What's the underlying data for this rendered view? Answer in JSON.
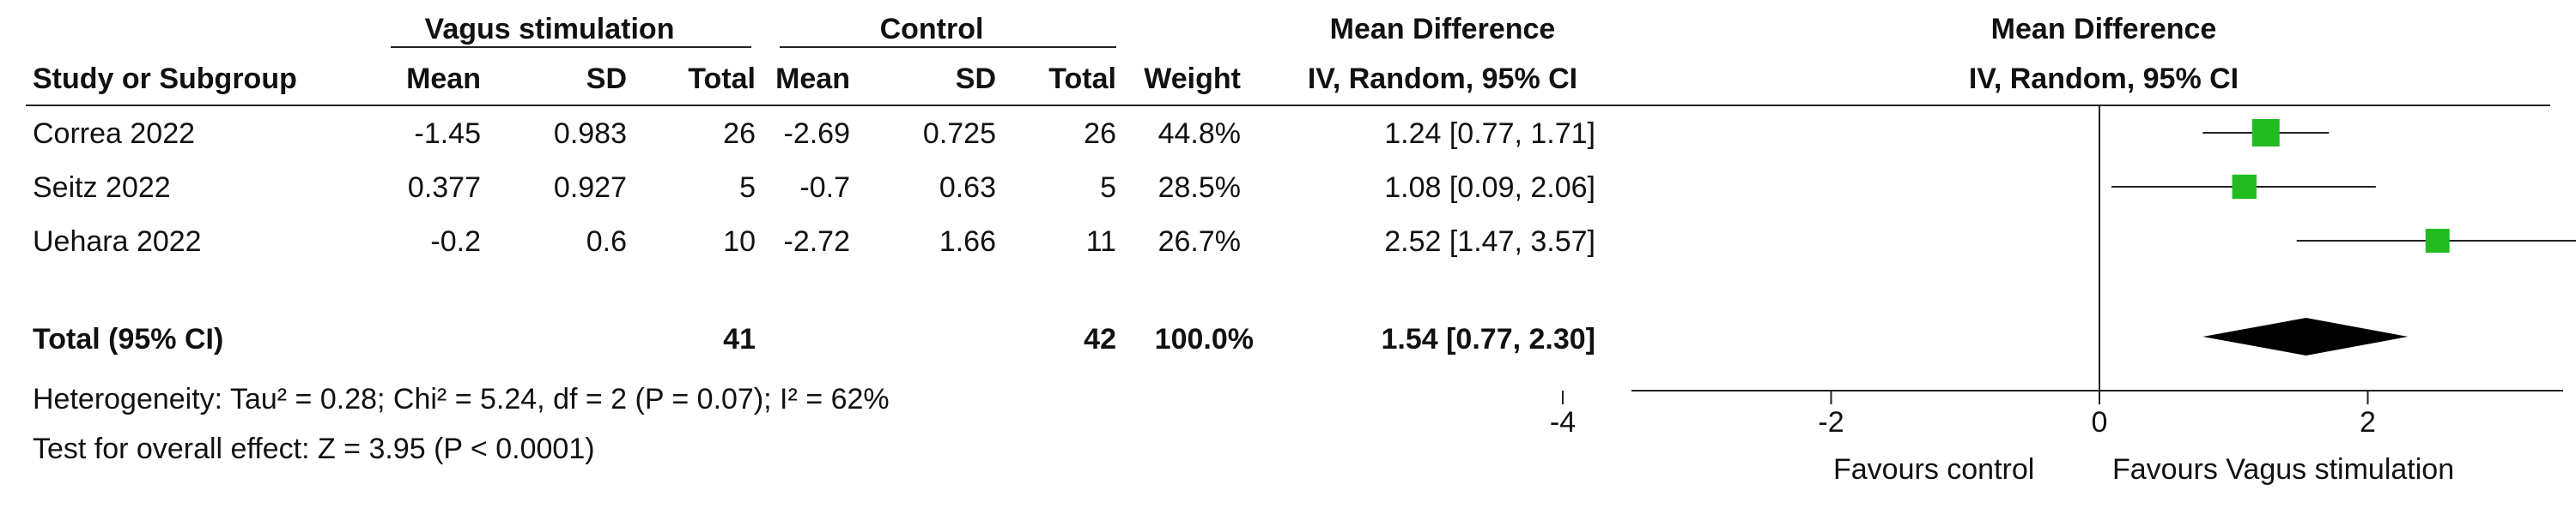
{
  "headers": {
    "group_exp": "Vagus stimulation",
    "group_ctl": "Control",
    "study": "Study or Subgroup",
    "mean": "Mean",
    "sd": "SD",
    "total": "Total",
    "weight": "Weight",
    "md": "Mean Difference",
    "md_method": "IV, Random, 95% CI",
    "plot_title": "Mean Difference",
    "plot_method": "IV, Random, 95% CI"
  },
  "studies": [
    {
      "name": "Correa 2022",
      "e_mean": "-1.45",
      "e_sd": "0.983",
      "e_total": "26",
      "c_mean": "-2.69",
      "c_sd": "0.725",
      "c_total": "26",
      "weight": "44.8%",
      "ci": "1.24 [0.77, 1.71]"
    },
    {
      "name": "Seitz 2022",
      "e_mean": "0.377",
      "e_sd": "0.927",
      "e_total": "5",
      "c_mean": "-0.7",
      "c_sd": "0.63",
      "c_total": "5",
      "weight": "28.5%",
      "ci": "1.08 [0.09, 2.06]"
    },
    {
      "name": "Uehara 2022",
      "e_mean": "-0.2",
      "e_sd": "0.6",
      "e_total": "10",
      "c_mean": "-2.72",
      "c_sd": "1.66",
      "c_total": "11",
      "weight": "26.7%",
      "ci": "2.52 [1.47, 3.57]"
    }
  ],
  "total": {
    "label": "Total (95% CI)",
    "e_total": "41",
    "c_total": "42",
    "weight": "100.0%",
    "ci": "1.54 [0.77, 2.30]"
  },
  "heterogeneity": "Heterogeneity: Tau² = 0.28; Chi² = 5.24, df = 2 (P = 0.07); I² = 62%",
  "overall_effect": "Test for overall effect: Z = 3.95 (P < 0.0001)",
  "favours_left": "Favours control",
  "favours_right": "Favours Vagus stimulation",
  "chart_data": {
    "type": "forest",
    "xlim": [
      -4,
      4
    ],
    "ticks": [
      -4,
      -2,
      0,
      2,
      4
    ],
    "marker_color": "#22bb22",
    "studies": [
      {
        "name": "Correa 2022",
        "md": 1.24,
        "lo": 0.77,
        "hi": 1.71,
        "weight": 44.8
      },
      {
        "name": "Seitz 2022",
        "md": 1.08,
        "lo": 0.09,
        "hi": 2.06,
        "weight": 28.5
      },
      {
        "name": "Uehara 2022",
        "md": 2.52,
        "lo": 1.47,
        "hi": 3.57,
        "weight": 26.7
      }
    ],
    "pooled": {
      "md": 1.54,
      "lo": 0.77,
      "hi": 2.3
    }
  }
}
